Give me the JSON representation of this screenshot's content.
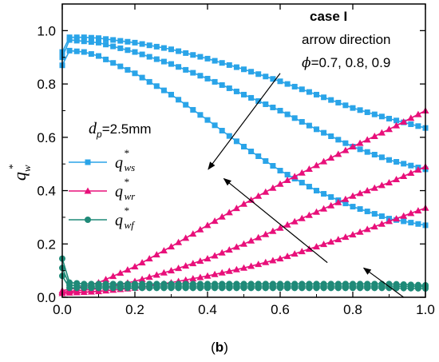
{
  "chart_data": {
    "type": "line",
    "caption": {
      "open": "(",
      "letter": "b",
      "close": ")"
    },
    "ylabel": {
      "base": "q",
      "sub": "w",
      "sup": "*"
    },
    "xlim": [
      0,
      1.0
    ],
    "ylim": [
      0,
      1.1
    ],
    "x_ticks": [
      "0.0",
      "0.2",
      "0.4",
      "0.6",
      "0.8",
      "1.0"
    ],
    "y_ticks": [
      "0.0",
      "0.2",
      "0.4",
      "0.6",
      "0.8",
      "1.0"
    ],
    "annotations": {
      "case": "case I",
      "arrow_direction": "arrow direction",
      "phi_symbol": "ϕ",
      "phi_values": "=0.7, 0.8, 0.9",
      "dp_base": "d",
      "dp_sub": "p",
      "dp_value": "=2.5mm"
    },
    "legend": [
      {
        "base": "q",
        "sub": "ws",
        "sup": "*",
        "color": "#2aa4e8",
        "marker": "square"
      },
      {
        "base": "q",
        "sub": "wr",
        "sup": "*",
        "color": "#e8107a",
        "marker": "triangle"
      },
      {
        "base": "q",
        "sub": "wf",
        "sup": "*",
        "color": "#1f8a78",
        "marker": "circle"
      }
    ],
    "groups": [
      {
        "color": "#2aa4e8",
        "marker": "square",
        "series": [
          {
            "x": [
              0,
              0.02,
              0.06,
              0.1,
              0.2,
              0.3,
              0.4,
              0.5,
              0.6,
              0.7,
              0.8,
              0.9,
              1.0
            ],
            "y": [
              0.92,
              0.975,
              0.975,
              0.972,
              0.955,
              0.93,
              0.895,
              0.855,
              0.81,
              0.76,
              0.71,
              0.67,
              0.635
            ]
          },
          {
            "x": [
              0,
              0.02,
              0.06,
              0.1,
              0.2,
              0.3,
              0.4,
              0.5,
              0.6,
              0.7,
              0.8,
              0.9,
              1.0
            ],
            "y": [
              0.9,
              0.965,
              0.96,
              0.955,
              0.92,
              0.875,
              0.82,
              0.76,
              0.7,
              0.63,
              0.565,
              0.515,
              0.48
            ]
          },
          {
            "x": [
              0,
              0.02,
              0.06,
              0.1,
              0.2,
              0.3,
              0.4,
              0.5,
              0.6,
              0.7,
              0.8,
              0.9,
              1.0
            ],
            "y": [
              0.87,
              0.925,
              0.92,
              0.905,
              0.84,
              0.76,
              0.665,
              0.565,
              0.475,
              0.4,
              0.34,
              0.295,
              0.27
            ]
          }
        ]
      },
      {
        "color": "#e8107a",
        "marker": "triangle",
        "series": [
          {
            "x": [
              0,
              0.02,
              0.06,
              0.1,
              0.2,
              0.3,
              0.4,
              0.5,
              0.6,
              0.7,
              0.8,
              0.9,
              1.0
            ],
            "y": [
              0.025,
              0.03,
              0.04,
              0.055,
              0.115,
              0.19,
              0.27,
              0.35,
              0.425,
              0.495,
              0.565,
              0.63,
              0.7
            ]
          },
          {
            "x": [
              0,
              0.02,
              0.06,
              0.1,
              0.2,
              0.3,
              0.4,
              0.5,
              0.6,
              0.7,
              0.8,
              0.9,
              1.0
            ],
            "y": [
              0.02,
              0.022,
              0.027,
              0.032,
              0.06,
              0.1,
              0.145,
              0.2,
              0.26,
              0.32,
              0.38,
              0.43,
              0.49
            ]
          },
          {
            "x": [
              0,
              0.02,
              0.06,
              0.1,
              0.2,
              0.3,
              0.4,
              0.5,
              0.6,
              0.7,
              0.8,
              0.9,
              1.0
            ],
            "y": [
              0.015,
              0.017,
              0.019,
              0.022,
              0.035,
              0.055,
              0.08,
              0.11,
              0.145,
              0.19,
              0.235,
              0.285,
              0.335
            ]
          }
        ]
      },
      {
        "color": "#1f8a78",
        "marker": "circle",
        "series": [
          {
            "x": [
              0,
              0.02,
              0.06,
              0.1,
              0.2,
              0.3,
              0.4,
              0.5,
              0.6,
              0.7,
              0.8,
              0.9,
              1.0
            ],
            "y": [
              0.145,
              0.055,
              0.05,
              0.05,
              0.05,
              0.05,
              0.05,
              0.05,
              0.05,
              0.05,
              0.05,
              0.05,
              0.045
            ]
          },
          {
            "x": [
              0,
              0.02,
              0.06,
              0.1,
              0.2,
              0.3,
              0.4,
              0.5,
              0.6,
              0.7,
              0.8,
              0.9,
              1.0
            ],
            "y": [
              0.11,
              0.045,
              0.042,
              0.042,
              0.042,
              0.042,
              0.042,
              0.042,
              0.042,
              0.042,
              0.042,
              0.042,
              0.04
            ]
          },
          {
            "x": [
              0,
              0.02,
              0.06,
              0.1,
              0.2,
              0.3,
              0.4,
              0.5,
              0.6,
              0.7,
              0.8,
              0.9,
              1.0
            ],
            "y": [
              0.08,
              0.035,
              0.035,
              0.035,
              0.035,
              0.035,
              0.035,
              0.035,
              0.035,
              0.035,
              0.035,
              0.035,
              0.033
            ]
          }
        ]
      }
    ],
    "arrows": [
      {
        "from": [
          0.6,
          0.84
        ],
        "to": [
          0.402,
          0.48
        ]
      },
      {
        "from": [
          0.73,
          0.13
        ],
        "to": [
          0.445,
          0.445
        ]
      },
      {
        "from": [
          0.94,
          0.0
        ],
        "to": [
          0.83,
          0.11
        ]
      }
    ]
  }
}
